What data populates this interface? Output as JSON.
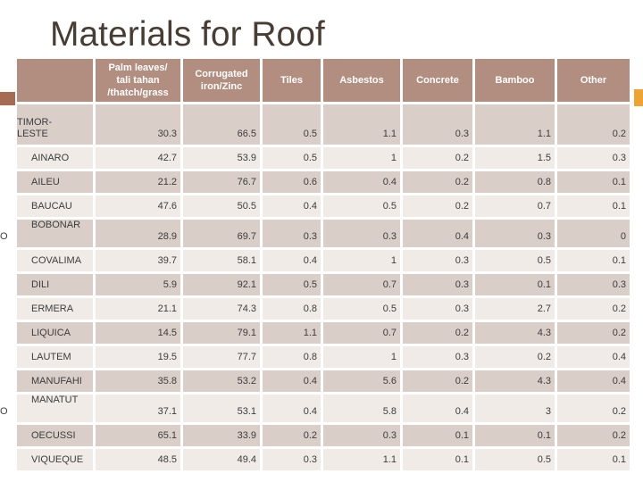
{
  "slide": {
    "title": "Materials for Roof",
    "colors": {
      "title_text": "#473d33",
      "header_bg": "#b18e7f",
      "header_text": "#ffffff",
      "row_dark": "#d9cec8",
      "row_light": "#f0ebe7",
      "body_text": "#3d3d3d",
      "accent_left": "#a76b54",
      "accent_right": "#eea434"
    }
  },
  "table": {
    "columns": [
      "",
      "Palm leaves/\ntali tahan\n/thatch/grass",
      "Corrugated\niron/Zinc",
      "Tiles",
      "Asbestos",
      "Concrete",
      "Bamboo",
      "Other"
    ],
    "rows": [
      {
        "label": "TIMOR-\nLESTE",
        "kind": "country",
        "values": [
          "30.3",
          "66.5",
          "0.5",
          "1.1",
          "0.3",
          "1.1",
          "0.2"
        ]
      },
      {
        "label": "AINARO",
        "kind": "district",
        "values": [
          "42.7",
          "53.9",
          "0.5",
          "1",
          "0.2",
          "1.5",
          "0.3"
        ]
      },
      {
        "label": "AILEU",
        "kind": "district",
        "values": [
          "21.2",
          "76.7",
          "0.6",
          "0.4",
          "0.2",
          "0.8",
          "0.1"
        ]
      },
      {
        "label": "BAUCAU",
        "kind": "district",
        "values": [
          "47.6",
          "50.5",
          "0.4",
          "0.5",
          "0.2",
          "0.7",
          "0.1"
        ]
      },
      {
        "label": "BOBONAR\nO",
        "kind": "district",
        "values": [
          "28.9",
          "69.7",
          "0.3",
          "0.3",
          "0.4",
          "0.3",
          "0"
        ]
      },
      {
        "label": "COVALIMA",
        "kind": "district",
        "values": [
          "39.7",
          "58.1",
          "0.4",
          "1",
          "0.3",
          "0.5",
          "0.1"
        ]
      },
      {
        "label": "DILI",
        "kind": "district",
        "values": [
          "5.9",
          "92.1",
          "0.5",
          "0.7",
          "0.3",
          "0.1",
          "0.3"
        ]
      },
      {
        "label": "ERMERA",
        "kind": "district",
        "values": [
          "21.1",
          "74.3",
          "0.8",
          "0.5",
          "0.3",
          "2.7",
          "0.2"
        ]
      },
      {
        "label": "LIQUICA",
        "kind": "district",
        "values": [
          "14.5",
          "79.1",
          "1.1",
          "0.7",
          "0.2",
          "4.3",
          "0.2"
        ]
      },
      {
        "label": "LAUTEM",
        "kind": "district",
        "values": [
          "19.5",
          "77.7",
          "0.8",
          "1",
          "0.3",
          "0.2",
          "0.4"
        ]
      },
      {
        "label": "MANUFAHI",
        "kind": "district",
        "values": [
          "35.8",
          "53.2",
          "0.4",
          "5.6",
          "0.2",
          "4.3",
          "0.4"
        ]
      },
      {
        "label": "MANATUT\nO",
        "kind": "district",
        "values": [
          "37.1",
          "53.1",
          "0.4",
          "5.8",
          "0.4",
          "3",
          "0.2"
        ]
      },
      {
        "label": "OECUSSI",
        "kind": "district",
        "values": [
          "65.1",
          "33.9",
          "0.2",
          "0.3",
          "0.1",
          "0.1",
          "0.2"
        ]
      },
      {
        "label": "VIQUEQUE",
        "kind": "district",
        "values": [
          "48.5",
          "49.4",
          "0.3",
          "1.1",
          "0.1",
          "0.5",
          "0.1"
        ]
      }
    ]
  }
}
